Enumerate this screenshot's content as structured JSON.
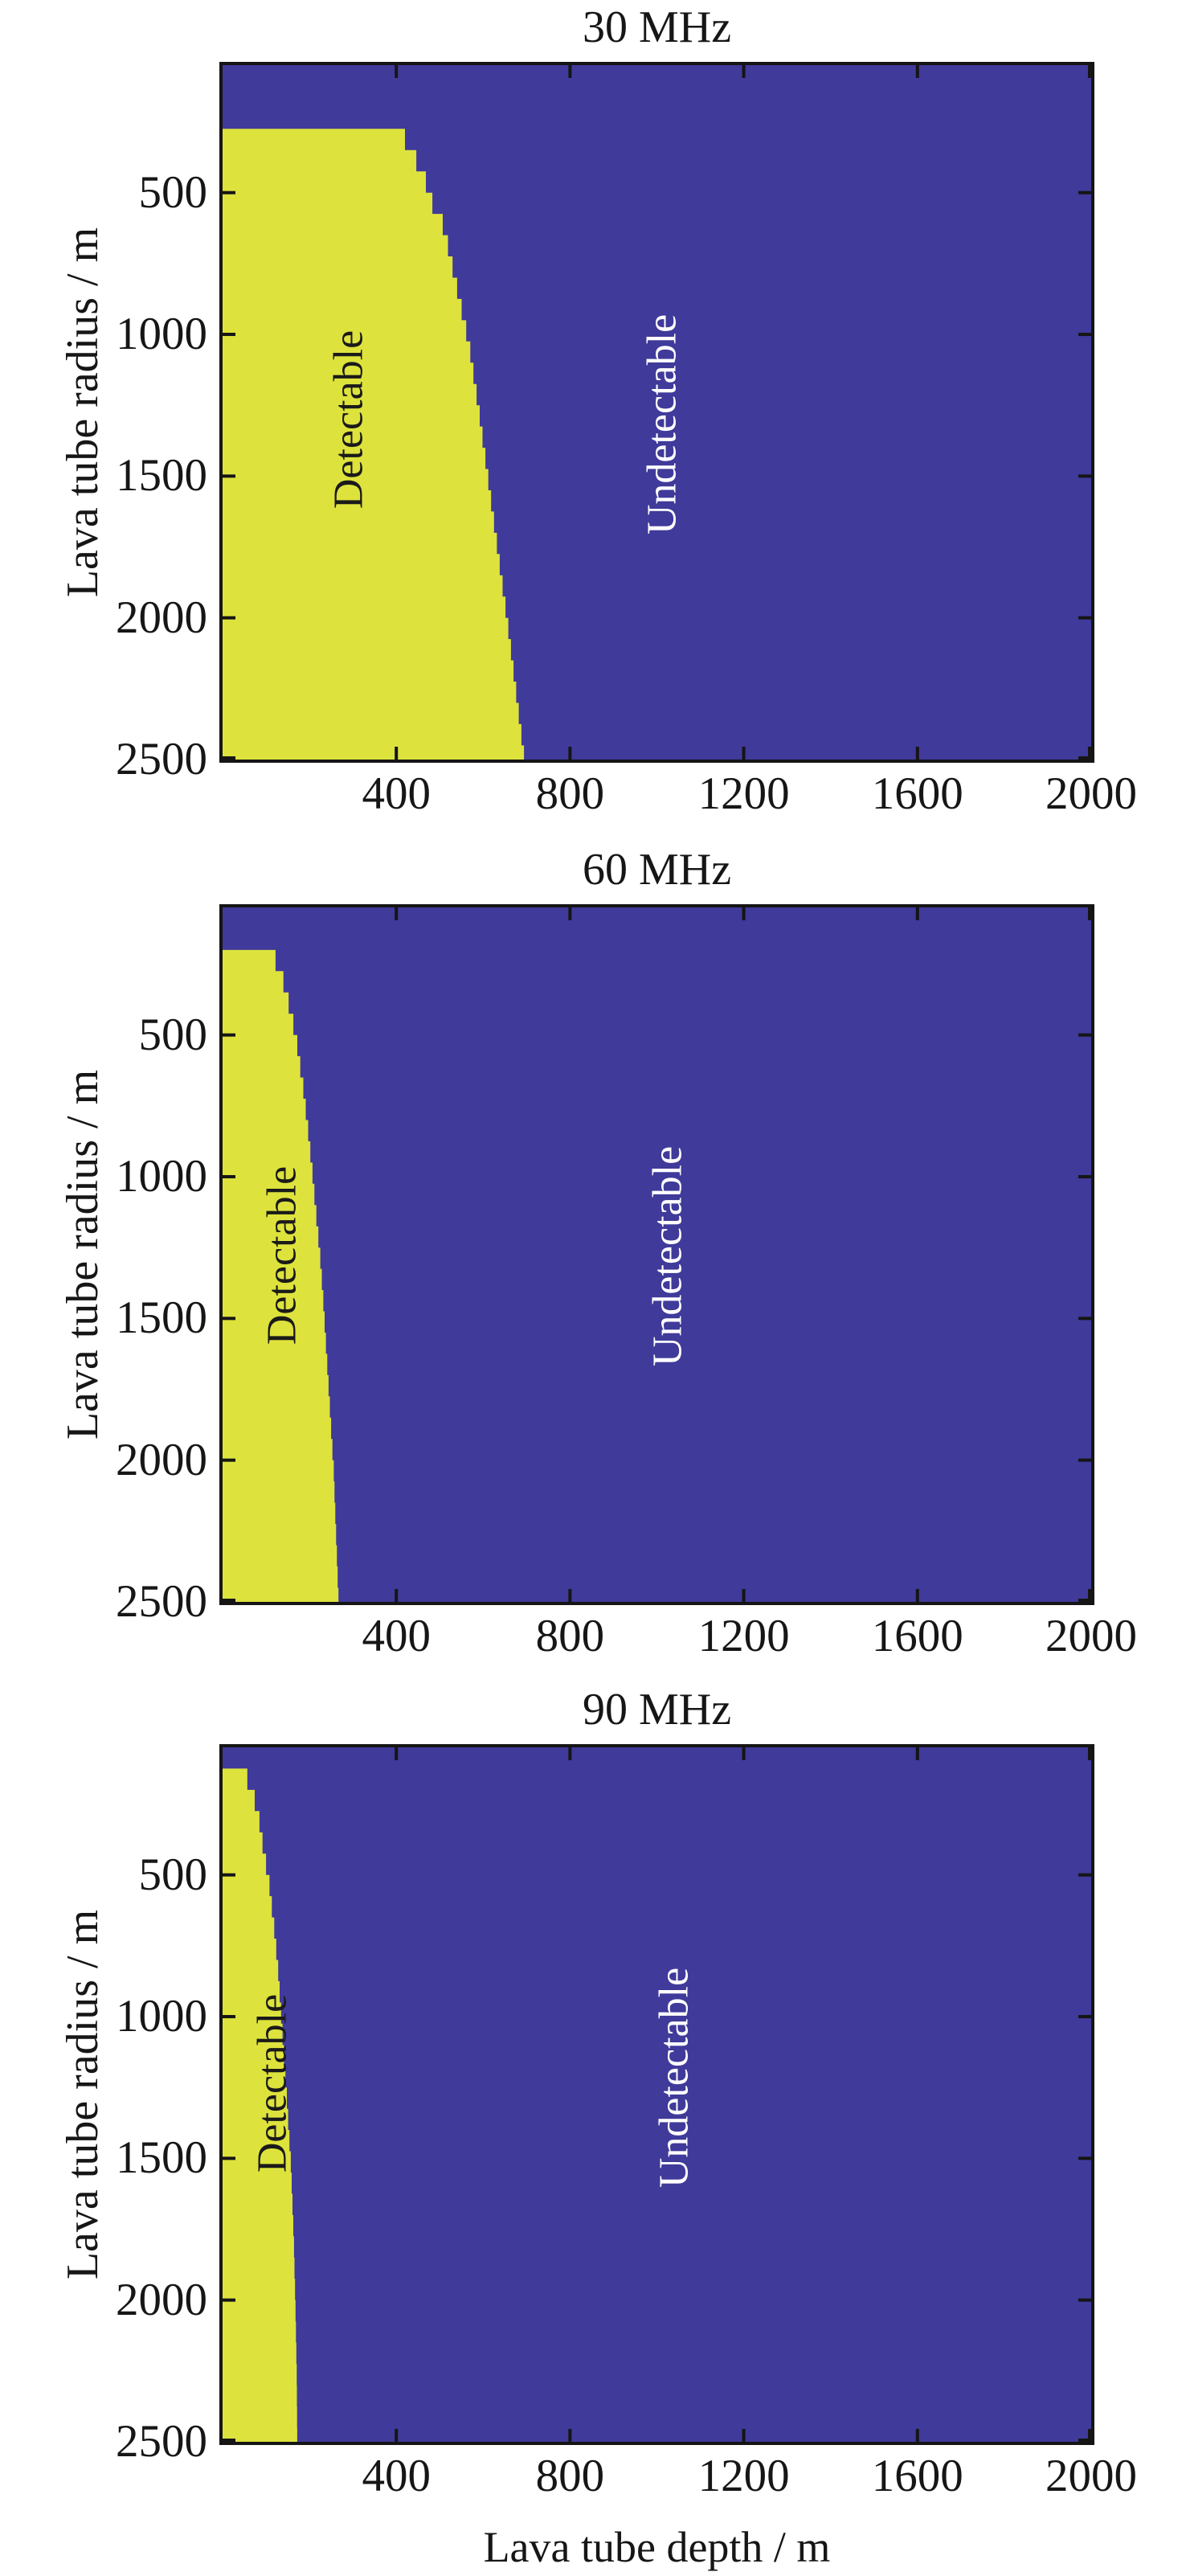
{
  "x_axis": {
    "label": "Lava tube depth / m",
    "ticks": [
      400,
      800,
      1200,
      1600,
      2000
    ],
    "range": [
      0,
      2000
    ]
  },
  "y_axis": {
    "label": "Lava tube radius / m",
    "ticks": [
      500,
      1000,
      1500,
      2000,
      2500
    ],
    "range": [
      50,
      2500
    ],
    "direction": "reversed (increases downward)"
  },
  "colors": {
    "detectable": "#dde33c",
    "undetectable": "#403a9a",
    "axis": "#151515",
    "detectable_text": "#1a1a1a",
    "undetectable_text": "#ffffff"
  },
  "panels": [
    {
      "title": "30 MHz",
      "region_labels": {
        "detectable": "Detectable",
        "undetectable": "Undetectable"
      }
    },
    {
      "title": "60 MHz",
      "region_labels": {
        "detectable": "Detectable",
        "undetectable": "Undetectable"
      }
    },
    {
      "title": "90 MHz",
      "region_labels": {
        "detectable": "Detectable",
        "undetectable": "Undetectable"
      }
    }
  ],
  "chart_data": [
    {
      "type": "heatmap",
      "title": "30 MHz",
      "xlabel": "Lava tube depth / m",
      "ylabel": "Lava tube radius / m",
      "xlim": [
        0,
        2000
      ],
      "ylim": [
        50,
        2500
      ],
      "grid": false,
      "classes": [
        "Detectable",
        "Undetectable"
      ],
      "min_detectable_radius": 275,
      "boundary_step_radius": 75,
      "boundary_depth_vs_radius": [
        [
          275,
          420
        ],
        [
          350,
          446
        ],
        [
          425,
          468
        ],
        [
          500,
          483
        ],
        [
          575,
          507
        ],
        [
          650,
          519
        ],
        [
          1000,
          568
        ],
        [
          1250,
          592
        ],
        [
          1500,
          614
        ],
        [
          1750,
          636
        ],
        [
          2000,
          658
        ],
        [
          2250,
          678
        ],
        [
          2500,
          698
        ]
      ],
      "annotations": [
        {
          "text": "Detectable",
          "depth": 290,
          "radius": 1300,
          "color": "#1a1a1a"
        },
        {
          "text": "Undetectable",
          "depth": 1012,
          "radius": 1317,
          "color": "#ffffff"
        }
      ]
    },
    {
      "type": "heatmap",
      "title": "60 MHz",
      "xlabel": "Lava tube depth / m",
      "ylabel": "Lava tube radius / m",
      "xlim": [
        0,
        2000
      ],
      "ylim": [
        50,
        2500
      ],
      "grid": false,
      "classes": [
        "Detectable",
        "Undetectable"
      ],
      "min_detectable_radius": 200,
      "boundary_step_radius": 75,
      "boundary_depth_vs_radius": [
        [
          200,
          122
        ],
        [
          275,
          140
        ],
        [
          350,
          152
        ],
        [
          425,
          163
        ],
        [
          500,
          172
        ],
        [
          650,
          186
        ],
        [
          800,
          197
        ],
        [
          950,
          207
        ],
        [
          1100,
          216
        ],
        [
          1250,
          225
        ],
        [
          1400,
          232
        ],
        [
          1700,
          244
        ],
        [
          2000,
          256
        ],
        [
          2250,
          262
        ],
        [
          2500,
          268
        ]
      ],
      "annotations": [
        {
          "text": "Detectable",
          "depth": 137,
          "radius": 1278,
          "color": "#1a1a1a"
        },
        {
          "text": "Undetectable",
          "depth": 1025,
          "radius": 1281,
          "color": "#ffffff"
        }
      ]
    },
    {
      "type": "heatmap",
      "title": "90 MHz",
      "xlabel": "Lava tube depth / m",
      "ylabel": "Lava tube radius / m",
      "xlim": [
        0,
        2000
      ],
      "ylim": [
        50,
        2500
      ],
      "grid": false,
      "classes": [
        "Detectable",
        "Undetectable"
      ],
      "min_detectable_radius": 125,
      "boundary_step_radius": 75,
      "boundary_depth_vs_radius": [
        [
          125,
          57
        ],
        [
          200,
          74
        ],
        [
          275,
          85
        ],
        [
          350,
          92
        ],
        [
          500,
          108
        ],
        [
          650,
          119
        ],
        [
          800,
          128
        ],
        [
          1000,
          137
        ],
        [
          1250,
          148
        ],
        [
          1500,
          158
        ],
        [
          1750,
          164
        ],
        [
          2000,
          168
        ],
        [
          2250,
          171
        ],
        [
          2500,
          172
        ]
      ],
      "annotations": [
        {
          "text": "Detectable",
          "depth": 115,
          "radius": 1235,
          "color": "#1a1a1a"
        },
        {
          "text": "Undetectable",
          "depth": 1040,
          "radius": 1215,
          "color": "#ffffff"
        }
      ]
    }
  ]
}
